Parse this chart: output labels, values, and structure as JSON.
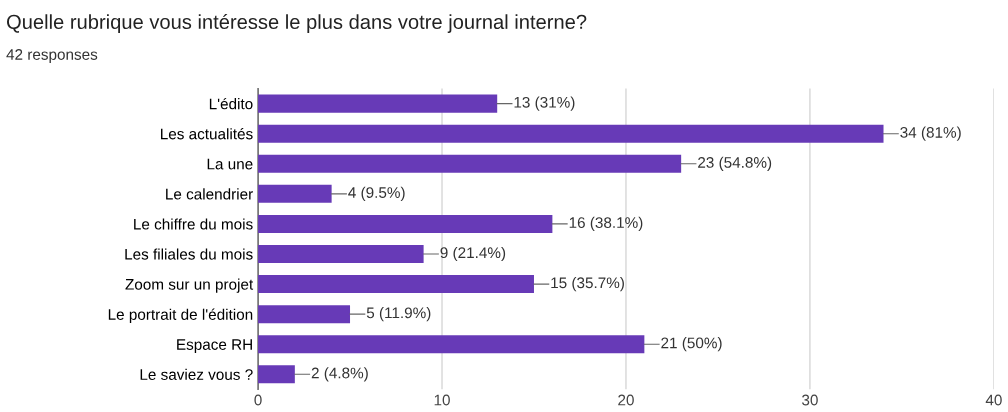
{
  "chart_data": {
    "type": "bar",
    "orientation": "horizontal",
    "title": "Quelle rubrique vous intéresse le plus dans votre journal interne?",
    "subtitle": "42 responses",
    "categories": [
      "L'édito",
      "Les actualités",
      "La une",
      "Le calendrier",
      "Le chiffre du mois",
      "Les filiales du mois",
      "Zoom sur un projet",
      "Le portrait de l'édition",
      "Espace RH",
      "Le saviez vous ?"
    ],
    "values": [
      13,
      34,
      23,
      4,
      16,
      9,
      15,
      5,
      21,
      2
    ],
    "value_labels": [
      "13 (31%)",
      "34 (81%)",
      "23 (54.8%)",
      "4 (9.5%)",
      "16 (38.1%)",
      "9 (21.4%)",
      "15 (35.7%)",
      "5 (11.9%)",
      "21 (50%)",
      "2 (4.8%)"
    ],
    "color": "#673ab7",
    "xlim": [
      0,
      40
    ],
    "xticks": [
      0,
      10,
      20,
      30,
      40
    ],
    "grid": "x"
  }
}
